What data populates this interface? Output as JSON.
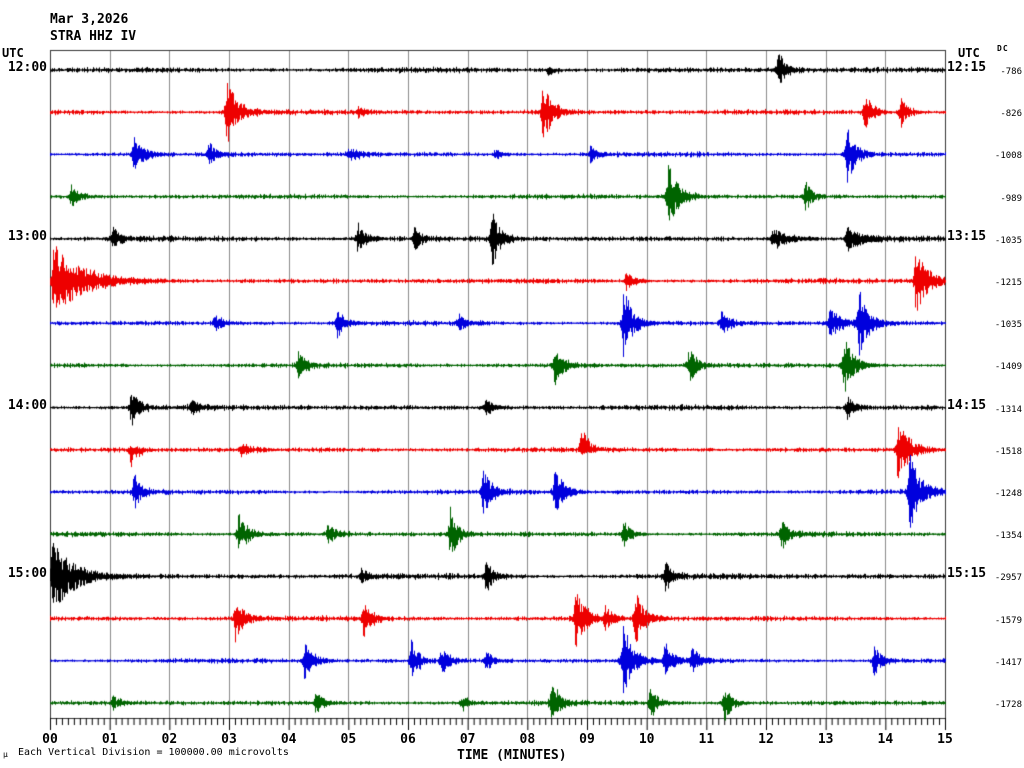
{
  "title": {
    "date": "Mar 3,2026",
    "station": "STRA HHZ IV"
  },
  "axes": {
    "left_header": "UTC",
    "right_header": "UTC",
    "dc_header": "DC",
    "xlabel": "TIME (MINUTES)",
    "x_ticks": [
      "00",
      "01",
      "02",
      "03",
      "04",
      "05",
      "06",
      "07",
      "08",
      "09",
      "10",
      "11",
      "12",
      "13",
      "14",
      "15"
    ],
    "footer": "Each Vertical Division = 100000.00 microvolts",
    "mu_glyph": "μ"
  },
  "chart_data": {
    "type": "line",
    "kind": "helicorder-seismogram",
    "station": "STRA HHZ IV",
    "date": "Mar 3,2026",
    "minutes_per_line": 15,
    "x_range_minutes": [
      0,
      15
    ],
    "grid": true,
    "colors": {
      "black": "#000000",
      "red": "#ee0000",
      "blue": "#0000dd",
      "green": "#006400",
      "grid": "#8a8a8a",
      "border": "#333333"
    },
    "rows": [
      {
        "color": "black",
        "left_label": "12:00",
        "right_label": "12:15",
        "dc": "-786",
        "noise": 1.6,
        "events": [
          {
            "t": 8.35,
            "a": 0.2,
            "dir": "down"
          },
          {
            "t": 12.2,
            "a": 0.5
          }
        ]
      },
      {
        "color": "red",
        "left_label": "",
        "right_label": "",
        "dc": "-826",
        "noise": 1.5,
        "events": [
          {
            "t": 2.95,
            "a": 0.85,
            "d": 0.18
          },
          {
            "t": 5.15,
            "a": 0.12
          },
          {
            "t": 8.25,
            "a": 0.8,
            "d": 0.15
          },
          {
            "t": 13.65,
            "a": 0.55
          },
          {
            "t": 14.25,
            "a": 0.4
          }
        ]
      },
      {
        "color": "blue",
        "left_label": "",
        "right_label": "",
        "dc": "-1008",
        "noise": 1.4,
        "events": [
          {
            "t": 1.4,
            "a": 0.5,
            "d": 0.15
          },
          {
            "t": 2.65,
            "a": 0.3
          },
          {
            "t": 5.0,
            "a": 0.18,
            "d": 0.2
          },
          {
            "t": 7.45,
            "a": 0.12
          },
          {
            "t": 9.05,
            "a": 0.22
          },
          {
            "t": 13.35,
            "a": 0.7,
            "d": 0.15
          }
        ]
      },
      {
        "color": "green",
        "left_label": "",
        "right_label": "",
        "dc": "-989",
        "noise": 1.4,
        "events": [
          {
            "t": 0.35,
            "a": 0.28
          },
          {
            "t": 10.35,
            "a": 0.8,
            "d": 0.18
          },
          {
            "t": 12.65,
            "a": 0.42,
            "d": 0.1
          }
        ]
      },
      {
        "color": "black",
        "left_label": "13:00",
        "right_label": "13:15",
        "dc": "-1035",
        "noise": 1.6,
        "events": [
          {
            "t": 1.05,
            "a": 0.28
          },
          {
            "t": 5.15,
            "a": 0.42
          },
          {
            "t": 6.1,
            "a": 0.32
          },
          {
            "t": 7.4,
            "a": 0.75,
            "d": 0.12
          },
          {
            "t": 12.1,
            "a": 0.28,
            "d": 0.25
          },
          {
            "t": 13.35,
            "a": 0.28,
            "d": 0.25
          }
        ]
      },
      {
        "color": "red",
        "left_label": "",
        "right_label": "",
        "dc": "-1215",
        "noise": 1.5,
        "events": [
          {
            "t": 0.05,
            "a": 0.95,
            "d": 0.45
          },
          {
            "t": 9.65,
            "a": 0.28
          },
          {
            "t": 14.5,
            "a": 0.8,
            "d": 0.2
          }
        ]
      },
      {
        "color": "blue",
        "left_label": "",
        "right_label": "",
        "dc": "-1035",
        "noise": 1.4,
        "events": [
          {
            "t": 2.75,
            "a": 0.28
          },
          {
            "t": 4.8,
            "a": 0.42
          },
          {
            "t": 6.85,
            "a": 0.2
          },
          {
            "t": 9.6,
            "a": 0.95,
            "d": 0.15
          },
          {
            "t": 11.25,
            "a": 0.32
          },
          {
            "t": 13.05,
            "a": 0.38,
            "d": 0.2
          },
          {
            "t": 13.55,
            "a": 0.85,
            "d": 0.15
          }
        ]
      },
      {
        "color": "green",
        "left_label": "",
        "right_label": "",
        "dc": "-1409",
        "noise": 1.4,
        "events": [
          {
            "t": 4.15,
            "a": 0.32
          },
          {
            "t": 8.45,
            "a": 0.5,
            "d": 0.15
          },
          {
            "t": 10.7,
            "a": 0.5
          },
          {
            "t": 13.3,
            "a": 0.75,
            "d": 0.15
          }
        ]
      },
      {
        "color": "black",
        "left_label": "14:00",
        "right_label": "14:15",
        "dc": "-1314",
        "noise": 1.6,
        "events": [
          {
            "t": 1.35,
            "a": 0.5
          },
          {
            "t": 2.35,
            "a": 0.18
          },
          {
            "t": 7.3,
            "a": 0.22
          },
          {
            "t": 13.35,
            "a": 0.32
          }
        ]
      },
      {
        "color": "red",
        "left_label": "",
        "right_label": "",
        "dc": "-1518",
        "noise": 1.5,
        "events": [
          {
            "t": 1.35,
            "a": 0.5,
            "dir": "down"
          },
          {
            "t": 3.2,
            "a": 0.18
          },
          {
            "t": 8.9,
            "a": 0.7,
            "dir": "up"
          },
          {
            "t": 14.2,
            "a": 0.75,
            "d": 0.2
          }
        ]
      },
      {
        "color": "blue",
        "left_label": "",
        "right_label": "",
        "dc": "-1248",
        "noise": 1.4,
        "events": [
          {
            "t": 1.4,
            "a": 0.48
          },
          {
            "t": 7.25,
            "a": 0.55,
            "d": 0.15
          },
          {
            "t": 8.45,
            "a": 0.6,
            "d": 0.15
          },
          {
            "t": 14.4,
            "a": 0.95,
            "d": 0.18
          }
        ]
      },
      {
        "color": "green",
        "left_label": "",
        "right_label": "",
        "dc": "-1354",
        "noise": 1.4,
        "events": [
          {
            "t": 3.15,
            "a": 0.55,
            "d": 0.15
          },
          {
            "t": 4.65,
            "a": 0.3
          },
          {
            "t": 6.7,
            "a": 0.7,
            "d": 0.12
          },
          {
            "t": 9.6,
            "a": 0.38
          },
          {
            "t": 12.25,
            "a": 0.38
          }
        ]
      },
      {
        "color": "black",
        "left_label": "15:00",
        "right_label": "15:15",
        "dc": "-2957",
        "noise": 1.6,
        "events": [
          {
            "t": 0.03,
            "a": 0.9,
            "d": 0.35
          },
          {
            "t": 5.2,
            "a": 0.18
          },
          {
            "t": 7.3,
            "a": 0.45
          },
          {
            "t": 10.3,
            "a": 0.38
          }
        ]
      },
      {
        "color": "red",
        "left_label": "",
        "right_label": "",
        "dc": "-1579",
        "noise": 1.5,
        "events": [
          {
            "t": 3.1,
            "a": 0.55,
            "d": 0.15
          },
          {
            "t": 5.25,
            "a": 0.48
          },
          {
            "t": 8.8,
            "a": 0.8,
            "d": 0.15
          },
          {
            "t": 9.3,
            "a": 0.3
          },
          {
            "t": 9.8,
            "a": 0.7,
            "d": 0.15
          }
        ]
      },
      {
        "color": "blue",
        "left_label": "",
        "right_label": "",
        "dc": "-1417",
        "noise": 1.4,
        "events": [
          {
            "t": 4.25,
            "a": 0.48,
            "d": 0.15
          },
          {
            "t": 6.05,
            "a": 0.55
          },
          {
            "t": 6.55,
            "a": 0.38
          },
          {
            "t": 7.3,
            "a": 0.25
          },
          {
            "t": 9.6,
            "a": 0.9,
            "d": 0.15
          },
          {
            "t": 10.3,
            "a": 0.45
          },
          {
            "t": 10.75,
            "a": 0.38
          },
          {
            "t": 13.8,
            "a": 0.42
          }
        ]
      },
      {
        "color": "green",
        "left_label": "",
        "right_label": "",
        "dc": "-1728",
        "noise": 1.4,
        "events": [
          {
            "t": 1.05,
            "a": 0.18
          },
          {
            "t": 4.45,
            "a": 0.28
          },
          {
            "t": 6.9,
            "a": 0.22
          },
          {
            "t": 8.4,
            "a": 0.65,
            "d": 0.12
          },
          {
            "t": 10.05,
            "a": 0.45
          },
          {
            "t": 11.3,
            "a": 0.5
          }
        ]
      }
    ]
  }
}
